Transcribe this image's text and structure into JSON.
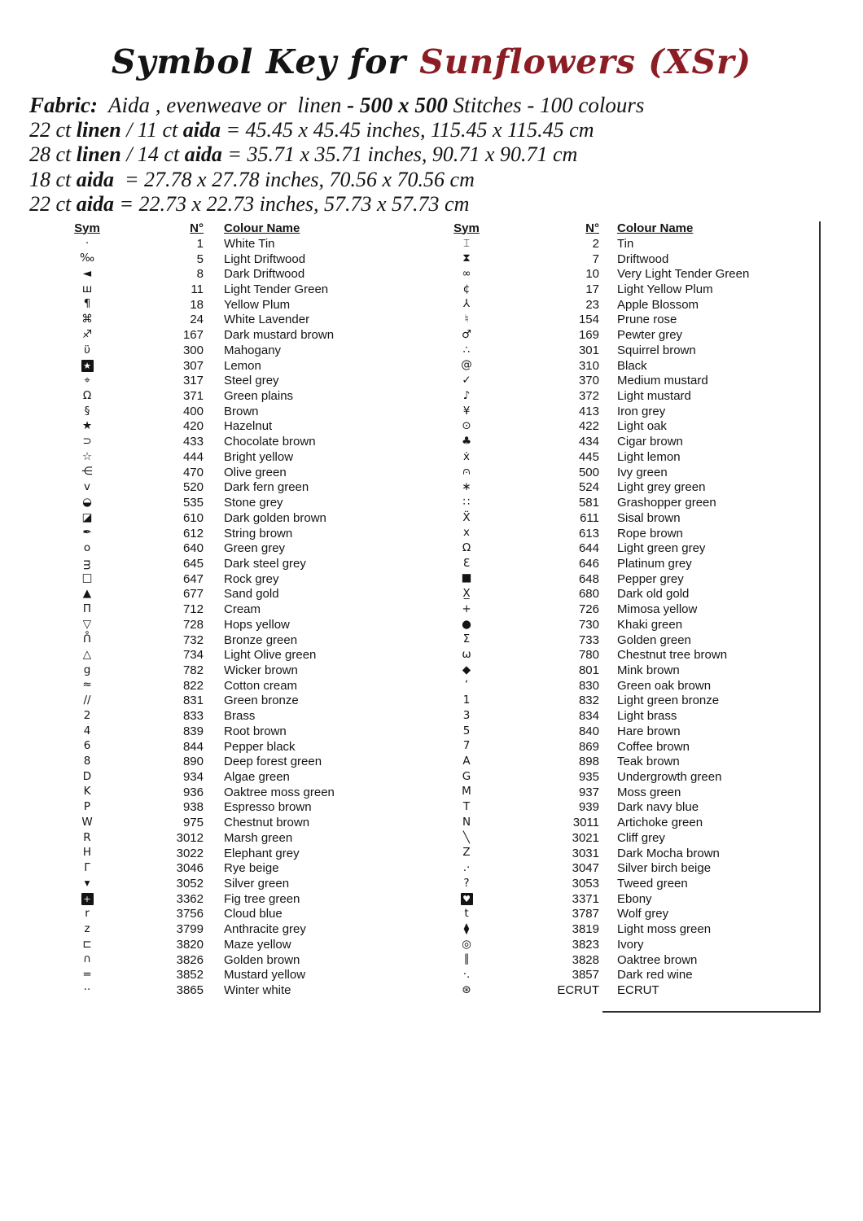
{
  "title": {
    "prefix": "Symbol Key for",
    "pattern": "Sunflowers (XSr)",
    "accent_color": "#8b1e25"
  },
  "fabric": {
    "lines": [
      [
        {
          "t": "Fabric:",
          "b": true
        },
        {
          "t": "  Aida , evenweave or  linen ",
          "b": false
        },
        {
          "t": "- 500 x 500",
          "b": true
        },
        {
          "t": " Stitches - 100 colours",
          "b": false
        }
      ],
      [
        {
          "t": "22 ct ",
          "b": false
        },
        {
          "t": "linen",
          "b": true
        },
        {
          "t": " / 11 ct ",
          "b": false
        },
        {
          "t": "aida",
          "b": true
        },
        {
          "t": " = 45.45 x 45.45 inches, 115.45 x 115.45 cm",
          "b": false
        }
      ],
      [
        {
          "t": "28 ct ",
          "b": false
        },
        {
          "t": "linen",
          "b": true
        },
        {
          "t": " / 14 ct ",
          "b": false
        },
        {
          "t": "aida",
          "b": true
        },
        {
          "t": " = 35.71 x 35.71 inches, 90.71 x 90.71 cm",
          "b": false
        }
      ],
      [
        {
          "t": "18 ct ",
          "b": false
        },
        {
          "t": "aida",
          "b": true
        },
        {
          "t": "  = 27.78 x 27.78 inches, 70.56 x 70.56 cm",
          "b": false
        }
      ],
      [
        {
          "t": "22 ct ",
          "b": false
        },
        {
          "t": "aida",
          "b": true
        },
        {
          "t": " = 22.73 x 22.73 inches, 57.73 x 57.73 cm",
          "b": false
        }
      ]
    ]
  },
  "tables": {
    "headers": {
      "sym": "Sym",
      "num": "N°",
      "name": "Colour Name"
    },
    "left_rows": [
      [
        "·",
        "1",
        "White Tin"
      ],
      [
        "‰",
        "5",
        "Light Driftwood"
      ],
      [
        "◄",
        "8",
        "Dark Driftwood"
      ],
      [
        "ш",
        "11",
        "Light Tender Green"
      ],
      [
        "¶",
        "18",
        "Yellow Plum"
      ],
      [
        "⌘",
        "24",
        "White Lavender"
      ],
      [
        "♐",
        "167",
        "Dark mustard brown"
      ],
      [
        "ϋ",
        "300",
        "Mahogany"
      ],
      [
        "★",
        "307",
        "Lemon",
        "inv"
      ],
      [
        "⌖",
        "317",
        "Steel grey"
      ],
      [
        "Ω",
        "371",
        "Green plains"
      ],
      [
        "§",
        "400",
        "Brown"
      ],
      [
        "★",
        "420",
        "Hazelnut"
      ],
      [
        "⊃",
        "433",
        "Chocolate brown"
      ],
      [
        "☆",
        "444",
        "Bright yellow"
      ],
      [
        "⋲",
        "470",
        "Olive green"
      ],
      [
        "ᴠ",
        "520",
        "Dark fern green"
      ],
      [
        "◒",
        "535",
        "Stone grey"
      ],
      [
        "◪",
        "610",
        "Dark golden brown"
      ],
      [
        "✒",
        "612",
        "String brown"
      ],
      [
        "o",
        "640",
        "Green grey"
      ],
      [
        "ᴟ",
        "645",
        "Dark steel grey"
      ],
      [
        "□",
        "647",
        "Rock grey"
      ],
      [
        "▲",
        "677",
        "Sand gold"
      ],
      [
        "Π",
        "712",
        "Cream"
      ],
      [
        "▽",
        "728",
        "Hops yellow"
      ],
      [
        "ᑍ",
        "732",
        "Bronze green"
      ],
      [
        "△",
        "734",
        "Light Olive green"
      ],
      [
        "g",
        "782",
        "Wicker brown"
      ],
      [
        "≈",
        "822",
        "Cotton cream"
      ],
      [
        "∕∕",
        "831",
        "Green bronze"
      ],
      [
        "2",
        "833",
        "Brass"
      ],
      [
        "4",
        "839",
        "Root brown"
      ],
      [
        "6",
        "844",
        "Pepper black"
      ],
      [
        "8",
        "890",
        "Deep forest green"
      ],
      [
        "D",
        "934",
        "Algae green"
      ],
      [
        "K",
        "936",
        "Oaktree moss green"
      ],
      [
        "P",
        "938",
        "Espresso brown"
      ],
      [
        "W",
        "975",
        "Chestnut brown"
      ],
      [
        "R",
        "3012",
        "Marsh green"
      ],
      [
        "H",
        "3022",
        "Elephant grey"
      ],
      [
        "Γ",
        "3046",
        "Rye beige"
      ],
      [
        "▾",
        "3052",
        "Silver green"
      ],
      [
        "+",
        "3362",
        "Fig tree green",
        "inv"
      ],
      [
        "r",
        "3756",
        "Cloud blue"
      ],
      [
        "z",
        "3799",
        "Anthracite grey"
      ],
      [
        "⊏",
        "3820",
        "Maze yellow"
      ],
      [
        "∩",
        "3826",
        "Golden brown"
      ],
      [
        "=",
        "3852",
        "Mustard yellow"
      ],
      [
        "··",
        "3865",
        "Winter white"
      ]
    ],
    "right_rows": [
      [
        "⌶",
        "2",
        "Tin"
      ],
      [
        "⧗",
        "7",
        "Driftwood"
      ],
      [
        "∞",
        "10",
        "Very Light Tender Green"
      ],
      [
        "¢",
        "17",
        "Light Yellow Plum"
      ],
      [
        "⅄",
        "23",
        "Apple Blossom"
      ],
      [
        "♮",
        "154",
        "Prune rose"
      ],
      [
        "♂",
        "169",
        "Pewter grey"
      ],
      [
        "∴",
        "301",
        "Squirrel brown"
      ],
      [
        "@",
        "310",
        "Black"
      ],
      [
        "✓",
        "370",
        "Medium mustard"
      ],
      [
        "♪",
        "372",
        "Light mustard"
      ],
      [
        "¥",
        "413",
        "Iron grey"
      ],
      [
        "⊙",
        "422",
        "Light oak"
      ],
      [
        "♣",
        "434",
        "Cigar brown"
      ],
      [
        "ẋ",
        "445",
        "Light lemon"
      ],
      [
        "⩀",
        "500",
        "Ivy green"
      ],
      [
        "∗",
        "524",
        "Light grey green"
      ],
      [
        "∷",
        "581",
        "Grashopper green"
      ],
      [
        "Ẍ",
        "611",
        "Sisal brown"
      ],
      [
        "x",
        "613",
        "Rope brown"
      ],
      [
        "Ω",
        "644",
        "Light green grey"
      ],
      [
        "Ɛ",
        "646",
        "Platinum grey"
      ],
      [
        "■",
        "648",
        "Pepper grey"
      ],
      [
        "X̲",
        "680",
        "Dark old gold"
      ],
      [
        "+",
        "726",
        "Mimosa yellow"
      ],
      [
        "●",
        "730",
        "Khaki green"
      ],
      [
        "Σ",
        "733",
        "Golden green"
      ],
      [
        "ω",
        "780",
        "Chestnut tree brown"
      ],
      [
        "◆",
        "801",
        "Mink brown"
      ],
      [
        "ʻ",
        "830",
        "Green oak brown"
      ],
      [
        "1",
        "832",
        "Light green bronze"
      ],
      [
        "3",
        "834",
        "Light brass"
      ],
      [
        "5",
        "840",
        "Hare brown"
      ],
      [
        "7",
        "869",
        "Coffee brown"
      ],
      [
        "A",
        "898",
        "Teak brown"
      ],
      [
        "G",
        "935",
        "Undergrowth green"
      ],
      [
        "M",
        "937",
        "Moss green"
      ],
      [
        "T",
        "939",
        "Dark navy blue"
      ],
      [
        "N",
        "3011",
        "Artichoke green"
      ],
      [
        "╲",
        "3021",
        "Cliff grey"
      ],
      [
        "Z",
        "3031",
        "Dark Mocha brown"
      ],
      [
        ".·",
        "3047",
        "Silver birch beige"
      ],
      [
        "?",
        "3053",
        "Tweed green"
      ],
      [
        "♥",
        "3371",
        "Ebony",
        "inv"
      ],
      [
        "t",
        "3787",
        "Wolf grey"
      ],
      [
        "⧫",
        "3819",
        "Light moss green"
      ],
      [
        "◎",
        "3823",
        "Ivory"
      ],
      [
        "∥",
        "3828",
        "Oaktree brown"
      ],
      [
        "·.",
        "3857",
        "Dark red wine"
      ],
      [
        "⊛",
        "ECRUT",
        "ECRUT"
      ]
    ]
  }
}
